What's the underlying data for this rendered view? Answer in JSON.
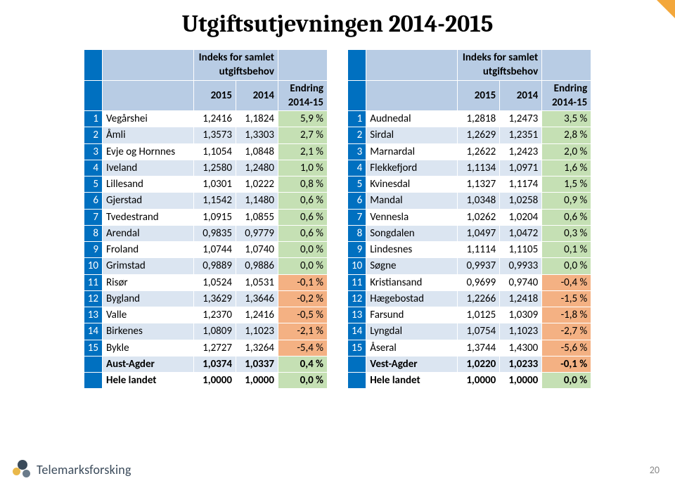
{
  "title": "Utgiftsutjevningen 2014-2015",
  "page_number": "20",
  "logo_text": "Telemarksforsking",
  "colors": {
    "num_bg": "#0070c0",
    "header_bg": "#b8cce4",
    "row_odd": "#ffffff",
    "row_even": "#dbe5f1",
    "chg_pos": "#c5e0b4",
    "chg_neg": "#f4b183",
    "chg_neutral": "#ffffff",
    "corner": "#f3a73b"
  },
  "header_labels": {
    "span": "Indeks for samlet utgiftsbehov",
    "y2015": "2015",
    "y2014": "2014",
    "change": "Endring 2014-15"
  },
  "table_left": {
    "rows": [
      {
        "n": "1",
        "name": "Vegårshei",
        "a": "1,2416",
        "b": "1,1824",
        "c": "5,9 %",
        "sign": 1
      },
      {
        "n": "2",
        "name": "Åmli",
        "a": "1,3573",
        "b": "1,3303",
        "c": "2,7 %",
        "sign": 1
      },
      {
        "n": "3",
        "name": "Evje og Hornnes",
        "a": "1,1054",
        "b": "1,0848",
        "c": "2,1 %",
        "sign": 1
      },
      {
        "n": "4",
        "name": "Iveland",
        "a": "1,2580",
        "b": "1,2480",
        "c": "1,0 %",
        "sign": 1
      },
      {
        "n": "5",
        "name": "Lillesand",
        "a": "1,0301",
        "b": "1,0222",
        "c": "0,8 %",
        "sign": 1
      },
      {
        "n": "6",
        "name": "Gjerstad",
        "a": "1,1542",
        "b": "1,1480",
        "c": "0,6 %",
        "sign": 1
      },
      {
        "n": "7",
        "name": "Tvedestrand",
        "a": "1,0915",
        "b": "1,0855",
        "c": "0,6 %",
        "sign": 1
      },
      {
        "n": "8",
        "name": "Arendal",
        "a": "0,9835",
        "b": "0,9779",
        "c": "0,6 %",
        "sign": 1
      },
      {
        "n": "9",
        "name": "Froland",
        "a": "1,0744",
        "b": "1,0740",
        "c": "0,0 %",
        "sign": 1
      },
      {
        "n": "10",
        "name": "Grimstad",
        "a": "0,9889",
        "b": "0,9886",
        "c": "0,0 %",
        "sign": 1
      },
      {
        "n": "11",
        "name": "Risør",
        "a": "1,0524",
        "b": "1,0531",
        "c": "-0,1 %",
        "sign": -1
      },
      {
        "n": "12",
        "name": "Bygland",
        "a": "1,3629",
        "b": "1,3646",
        "c": "-0,2 %",
        "sign": -1
      },
      {
        "n": "13",
        "name": "Valle",
        "a": "1,2370",
        "b": "1,2416",
        "c": "-0,5 %",
        "sign": -1
      },
      {
        "n": "14",
        "name": "Birkenes",
        "a": "1,0809",
        "b": "1,1023",
        "c": "-2,1 %",
        "sign": -1
      },
      {
        "n": "15",
        "name": "Bykle",
        "a": "1,2727",
        "b": "1,3264",
        "c": "-5,4 %",
        "sign": -1
      }
    ],
    "summary": [
      {
        "name": "Aust-Agder",
        "a": "1,0374",
        "b": "1,0337",
        "c": "0,4 %",
        "sign": 1
      },
      {
        "name": "Hele landet",
        "a": "1,0000",
        "b": "1,0000",
        "c": "0,0 %",
        "sign": 1
      }
    ]
  },
  "table_right": {
    "rows": [
      {
        "n": "1",
        "name": "Audnedal",
        "a": "1,2818",
        "b": "1,2473",
        "c": "3,5 %",
        "sign": 1
      },
      {
        "n": "2",
        "name": "Sirdal",
        "a": "1,2629",
        "b": "1,2351",
        "c": "2,8 %",
        "sign": 1
      },
      {
        "n": "3",
        "name": "Marnardal",
        "a": "1,2622",
        "b": "1,2423",
        "c": "2,0 %",
        "sign": 1
      },
      {
        "n": "4",
        "name": "Flekkefjord",
        "a": "1,1134",
        "b": "1,0971",
        "c": "1,6 %",
        "sign": 1
      },
      {
        "n": "5",
        "name": "Kvinesdal",
        "a": "1,1327",
        "b": "1,1174",
        "c": "1,5 %",
        "sign": 1
      },
      {
        "n": "6",
        "name": "Mandal",
        "a": "1,0348",
        "b": "1,0258",
        "c": "0,9 %",
        "sign": 1
      },
      {
        "n": "7",
        "name": "Vennesla",
        "a": "1,0262",
        "b": "1,0204",
        "c": "0,6 %",
        "sign": 1
      },
      {
        "n": "8",
        "name": "Songdalen",
        "a": "1,0497",
        "b": "1,0472",
        "c": "0,3 %",
        "sign": 1
      },
      {
        "n": "9",
        "name": "Lindesnes",
        "a": "1,1114",
        "b": "1,1105",
        "c": "0,1 %",
        "sign": 1
      },
      {
        "n": "10",
        "name": "Søgne",
        "a": "0,9937",
        "b": "0,9933",
        "c": "0,0 %",
        "sign": 1
      },
      {
        "n": "11",
        "name": "Kristiansand",
        "a": "0,9699",
        "b": "0,9740",
        "c": "-0,4 %",
        "sign": -1
      },
      {
        "n": "12",
        "name": "Hægebostad",
        "a": "1,2266",
        "b": "1,2418",
        "c": "-1,5 %",
        "sign": -1
      },
      {
        "n": "13",
        "name": "Farsund",
        "a": "1,0125",
        "b": "1,0309",
        "c": "-1,8 %",
        "sign": -1
      },
      {
        "n": "14",
        "name": "Lyngdal",
        "a": "1,0754",
        "b": "1,1023",
        "c": "-2,7 %",
        "sign": -1
      },
      {
        "n": "15",
        "name": "Åseral",
        "a": "1,3744",
        "b": "1,4300",
        "c": "-5,6 %",
        "sign": -1
      }
    ],
    "summary": [
      {
        "name": "Vest-Agder",
        "a": "1,0220",
        "b": "1,0233",
        "c": "-0,1 %",
        "sign": -1
      },
      {
        "name": "Hele landet",
        "a": "1,0000",
        "b": "1,0000",
        "c": "0,0 %",
        "sign": 1
      }
    ]
  }
}
